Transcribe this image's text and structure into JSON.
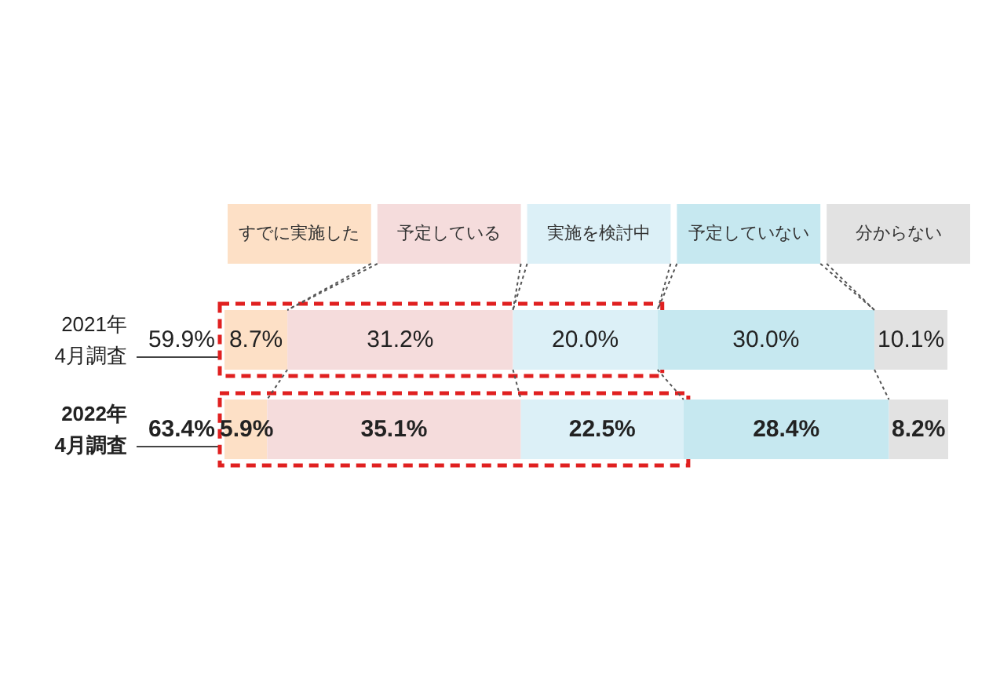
{
  "chart_data": {
    "type": "bar",
    "orientation": "horizontal",
    "stacked": true,
    "legend": "top",
    "tick_labels": "y",
    "categories": [
      "2021年\n4月調査",
      "2022年\n4月調査"
    ],
    "series": [
      {
        "name": "すでに実施した",
        "color": "#fde0c6",
        "values": [
          8.7,
          5.9
        ],
        "value_labels": [
          "8.7%",
          "5.9%"
        ]
      },
      {
        "name": "予定している",
        "color": "#f5dcdc",
        "values": [
          31.2,
          35.1
        ],
        "value_labels": [
          "31.2%",
          "35.1%"
        ]
      },
      {
        "name": "実施を検討中",
        "color": "#dcf0f7",
        "values": [
          20.0,
          22.5
        ],
        "value_labels": [
          "20.0%",
          "22.5%"
        ]
      },
      {
        "name": "予定していない",
        "color": "#c6e8f0",
        "values": [
          30.0,
          28.4
        ],
        "value_labels": [
          "30.0%",
          "28.4%"
        ]
      },
      {
        "name": "分からない",
        "color": "#e2e2e2",
        "values": [
          10.1,
          8.2
        ],
        "value_labels": [
          "10.1%",
          "8.2%"
        ]
      }
    ],
    "annotations": [
      "59.9%",
      "63.4%"
    ]
  }
}
